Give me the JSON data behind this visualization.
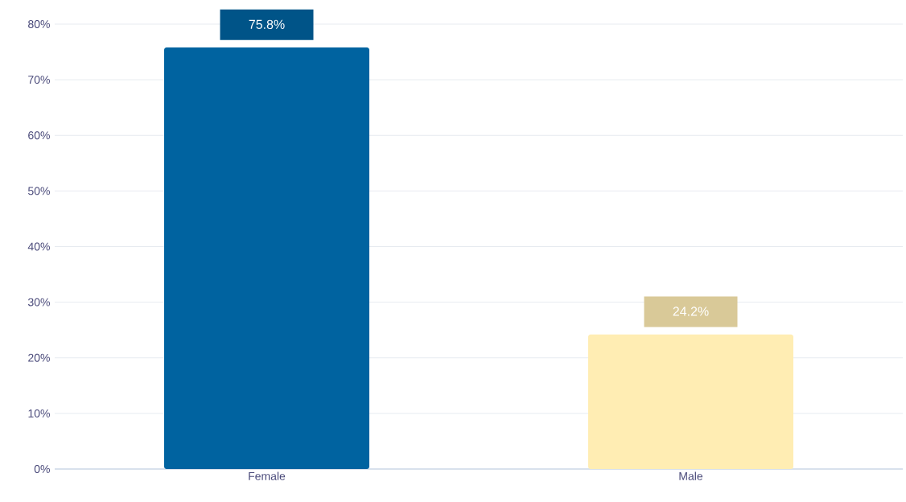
{
  "chart_data": {
    "type": "bar",
    "categories": [
      "Female",
      "Male"
    ],
    "values": [
      75.8,
      24.2
    ],
    "colors": [
      "#0063a0",
      "#ffedb3"
    ],
    "value_labels": [
      "75.8%",
      "24.2%"
    ],
    "ylim": [
      0,
      80
    ],
    "yticks": [
      {
        "value": 0,
        "label": "0%"
      },
      {
        "value": 10,
        "label": "10%"
      },
      {
        "value": 20,
        "label": "20%"
      },
      {
        "value": 30,
        "label": "30%"
      },
      {
        "value": 40,
        "label": "40%"
      },
      {
        "value": 50,
        "label": "50%"
      },
      {
        "value": 60,
        "label": "60%"
      },
      {
        "value": 70,
        "label": "70%"
      },
      {
        "value": 80,
        "label": "80%"
      }
    ],
    "grid": "y"
  }
}
